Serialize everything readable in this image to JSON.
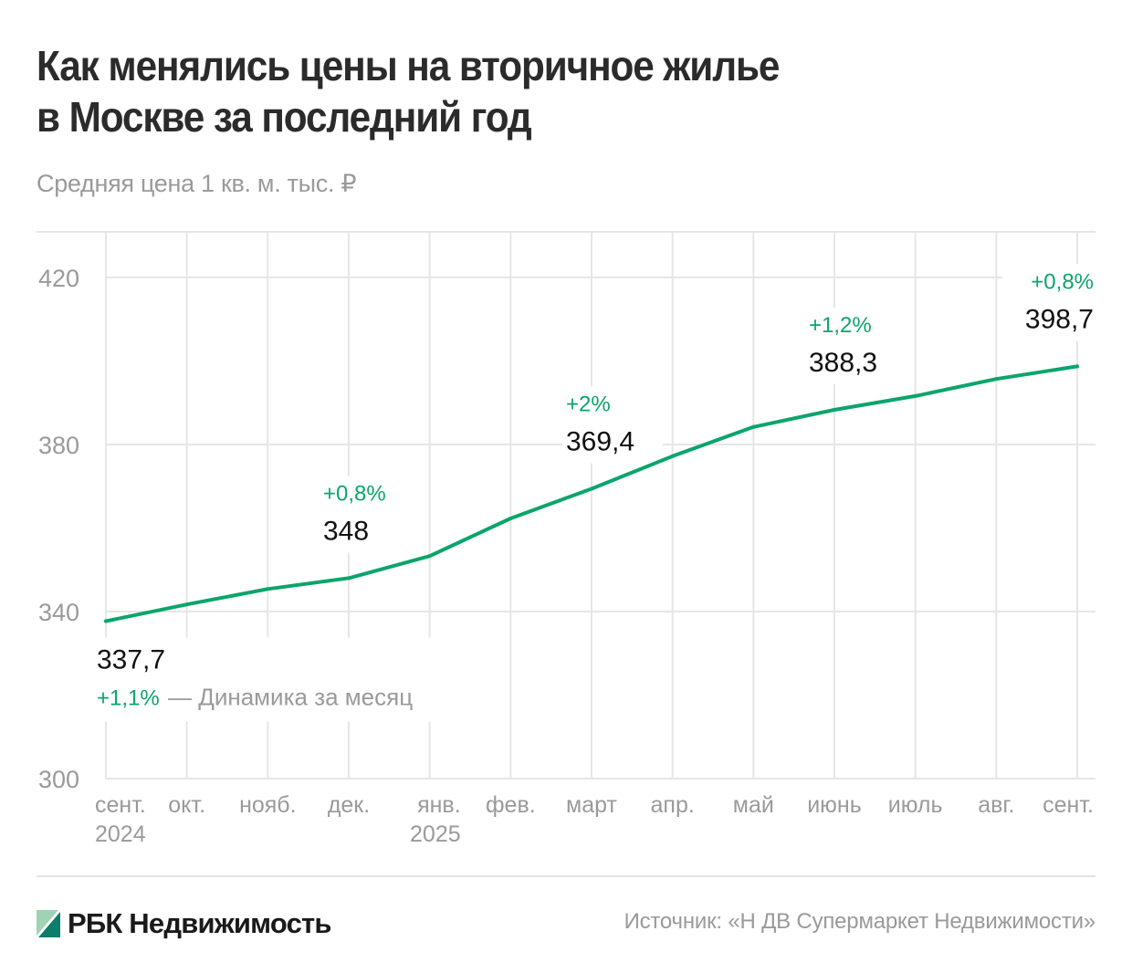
{
  "header": {
    "title_line1": "Как менялись цены на вторичное жилье",
    "title_line2": "в Москве за последний год",
    "subtitle": "Средняя цена 1 кв. м. тыс. ₽"
  },
  "footer": {
    "logo_text": "РБК Недвижимость",
    "source": "Источник: «Н ДВ Супермаркет Недвижимости»"
  },
  "colors": {
    "line": "#0aa56b",
    "pct_label": "#0aa56b",
    "value_label": "#111111",
    "axis_text": "#9a9a9a",
    "grid": "#e6e6e6",
    "logo_light": "#9fd3b3",
    "logo_dark": "#0b7d6a"
  },
  "chart_data": {
    "type": "line",
    "title": "Как менялись цены на вторичное жилье в Москве за последний год",
    "subtitle": "Средняя цена 1 кв. м. тыс. ₽",
    "xlabel": "",
    "ylabel": "Средняя цена 1 кв. м. тыс. ₽",
    "ylim": [
      300,
      430
    ],
    "yticks": [
      300,
      340,
      380,
      420
    ],
    "grid": true,
    "categories": [
      {
        "month": "сент.",
        "year": "2024"
      },
      {
        "month": "окт.",
        "year": ""
      },
      {
        "month": "нояб.",
        "year": ""
      },
      {
        "month": "дек.",
        "year": ""
      },
      {
        "month": "янв.",
        "year": "2025"
      },
      {
        "month": "фев.",
        "year": ""
      },
      {
        "month": "март",
        "year": ""
      },
      {
        "month": "апр.",
        "year": ""
      },
      {
        "month": "май",
        "year": ""
      },
      {
        "month": "июнь",
        "year": ""
      },
      {
        "month": "июль",
        "year": ""
      },
      {
        "month": "авг.",
        "year": ""
      },
      {
        "month": "сент.",
        "year": ""
      }
    ],
    "series": [
      {
        "name": "Средняя цена 1 кв. м.",
        "values": [
          337.7,
          341.7,
          345.4,
          348.0,
          353.3,
          362.3,
          369.4,
          377.2,
          384.2,
          388.3,
          391.6,
          395.7,
          398.7
        ]
      }
    ],
    "annotations": [
      {
        "index": 0,
        "value": "337,7",
        "change": "+1,1%",
        "position": "below",
        "legend": "— Динамика за месяц"
      },
      {
        "index": 3,
        "value": "348",
        "change": "+0,8%",
        "position": "above"
      },
      {
        "index": 6,
        "value": "369,4",
        "change": "+2%",
        "position": "above"
      },
      {
        "index": 9,
        "value": "388,3",
        "change": "+1,2%",
        "position": "above"
      },
      {
        "index": 12,
        "value": "398,7",
        "change": "+0,8%",
        "position": "above"
      }
    ]
  }
}
